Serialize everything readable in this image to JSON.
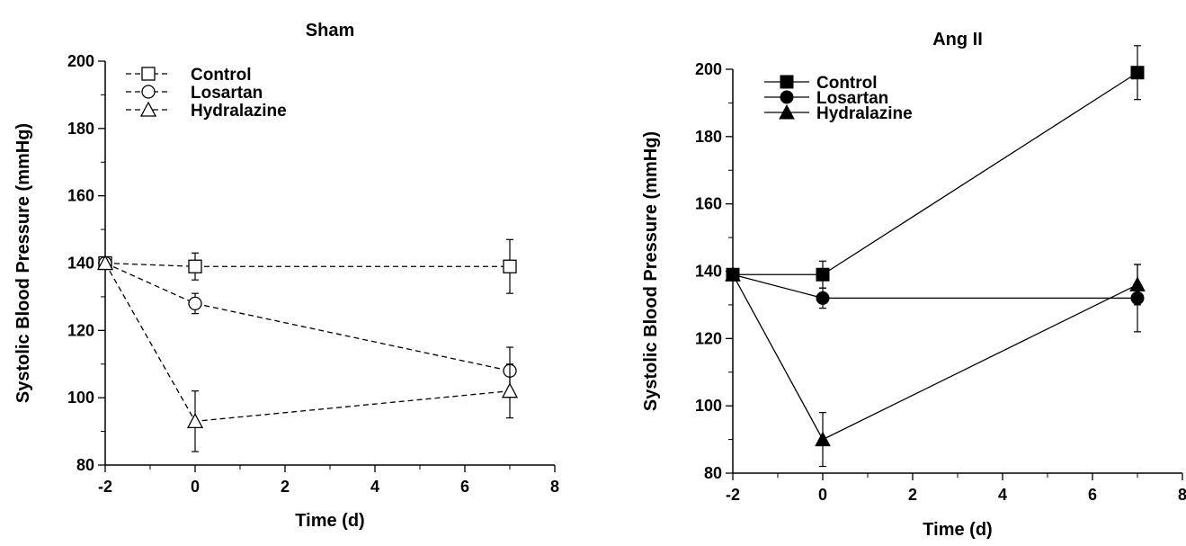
{
  "chart_data": [
    {
      "type": "line",
      "title": "Sham",
      "xlabel": "Time (d)",
      "ylabel": "Systolic Blood Pressure (mmHg)",
      "xlim": [
        -2,
        8
      ],
      "ylim": [
        80,
        200
      ],
      "x_ticks": [
        -2,
        0,
        2,
        4,
        6,
        8
      ],
      "y_ticks": [
        80,
        100,
        120,
        140,
        160,
        180,
        200
      ],
      "line_style": "dashed",
      "marker_fill": "open",
      "legend": {
        "position": "top-left"
      },
      "series": [
        {
          "name": "Control",
          "marker": "square",
          "points": [
            {
              "x": -2,
              "y": 140,
              "err": 0
            },
            {
              "x": 0,
              "y": 139,
              "err": 4
            },
            {
              "x": 7,
              "y": 139,
              "err": 8
            }
          ]
        },
        {
          "name": "Losartan",
          "marker": "circle",
          "points": [
            {
              "x": -2,
              "y": 140,
              "err": 0
            },
            {
              "x": 0,
              "y": 128,
              "err": 3
            },
            {
              "x": 7,
              "y": 108,
              "err": 7
            }
          ]
        },
        {
          "name": "Hydralazine",
          "marker": "triangle",
          "points": [
            {
              "x": -2,
              "y": 140,
              "err": 0
            },
            {
              "x": 0,
              "y": 93,
              "err": 9
            },
            {
              "x": 7,
              "y": 102,
              "err": 8
            }
          ]
        }
      ]
    },
    {
      "type": "line",
      "title": "Ang II",
      "xlabel": "Time (d)",
      "ylabel": "Systolic Blood Pressure (mmHg)",
      "xlim": [
        -2,
        8
      ],
      "ylim": [
        80,
        200
      ],
      "x_ticks": [
        -2,
        0,
        2,
        4,
        6,
        8
      ],
      "y_ticks": [
        80,
        100,
        120,
        140,
        160,
        180,
        200
      ],
      "line_style": "solid",
      "marker_fill": "filled",
      "legend": {
        "position": "top-left"
      },
      "series": [
        {
          "name": "Control",
          "marker": "square",
          "points": [
            {
              "x": -2,
              "y": 139,
              "err": 0
            },
            {
              "x": 0,
              "y": 139,
              "err": 4
            },
            {
              "x": 7,
              "y": 199,
              "err": 8
            }
          ]
        },
        {
          "name": "Losartan",
          "marker": "circle",
          "points": [
            {
              "x": -2,
              "y": 139,
              "err": 0
            },
            {
              "x": 0,
              "y": 132,
              "err": 3
            },
            {
              "x": 7,
              "y": 132,
              "err": 10
            }
          ]
        },
        {
          "name": "Hydralazine",
          "marker": "triangle",
          "points": [
            {
              "x": -2,
              "y": 139,
              "err": 0
            },
            {
              "x": 0,
              "y": 90,
              "err": 8
            },
            {
              "x": 7,
              "y": 136,
              "err": 6
            }
          ]
        }
      ]
    }
  ]
}
